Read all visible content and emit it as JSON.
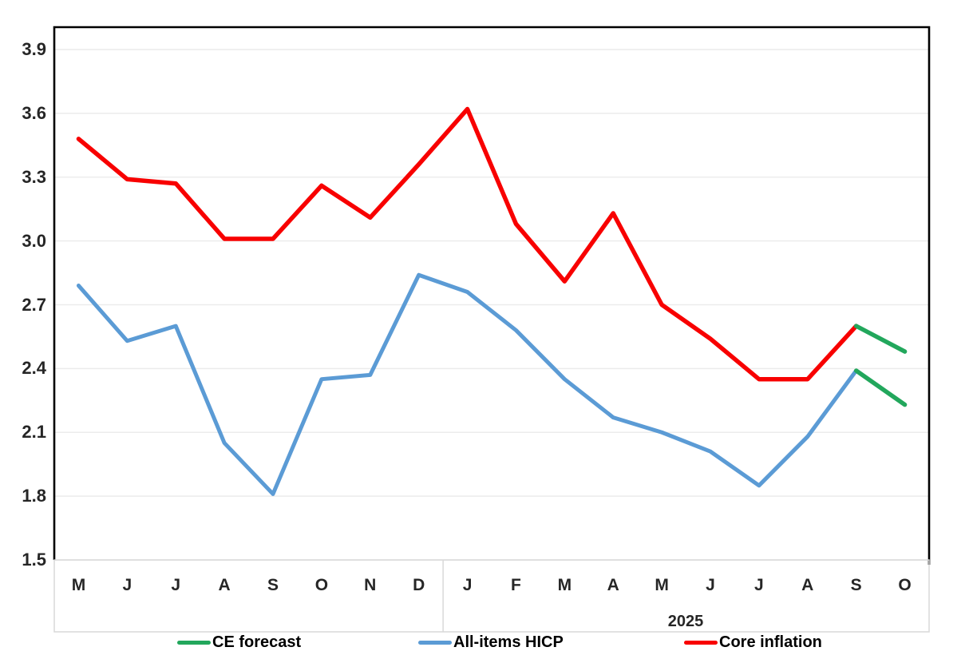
{
  "chart_data": {
    "type": "line",
    "title": "",
    "xlabel": "",
    "ylabel": "",
    "ylim": [
      1.5,
      3.9
    ],
    "ytick_step": 0.3,
    "yticks": [
      "3.9",
      "3.6",
      "3.3",
      "3.0",
      "2.7",
      "2.4",
      "2.1",
      "1.8",
      "1.5"
    ],
    "categories": [
      "M",
      "J",
      "J",
      "A",
      "S",
      "O",
      "N",
      "D",
      "J",
      "F",
      "M",
      "A",
      "M",
      "J",
      "J",
      "A",
      "S",
      "O"
    ],
    "year_groups": [
      {
        "label": "",
        "start_index": 0,
        "end_index": 7
      },
      {
        "label": "2025",
        "start_index": 8,
        "end_index": 17
      }
    ],
    "grid": "horizontal",
    "legend_position": "bottom",
    "series": [
      {
        "name": "All-items HICP",
        "color": "#5B9BD5",
        "values": [
          2.79,
          2.53,
          2.6,
          2.05,
          1.81,
          2.35,
          2.37,
          2.84,
          2.76,
          2.58,
          2.35,
          2.17,
          2.1,
          2.01,
          1.85,
          2.08,
          2.39,
          null
        ]
      },
      {
        "name": "Core inflation",
        "color": "#F80000",
        "values": [
          3.48,
          3.29,
          3.27,
          3.01,
          3.01,
          3.26,
          3.11,
          3.36,
          3.62,
          3.08,
          2.81,
          3.13,
          2.7,
          2.54,
          2.35,
          2.35,
          2.6,
          null
        ]
      },
      {
        "name": "CE forecast",
        "color": "#22A75C",
        "branches": [
          {
            "from_index": 16,
            "values": [
              2.6,
              2.48
            ]
          },
          {
            "from_index": 16,
            "values": [
              2.39,
              2.23
            ]
          }
        ]
      }
    ],
    "legend": [
      {
        "label": "CE forecast",
        "color": "#22A75C"
      },
      {
        "label": "All-items HICP",
        "color": "#5B9BD5"
      },
      {
        "label": "Core inflation",
        "color": "#F80000"
      }
    ]
  }
}
